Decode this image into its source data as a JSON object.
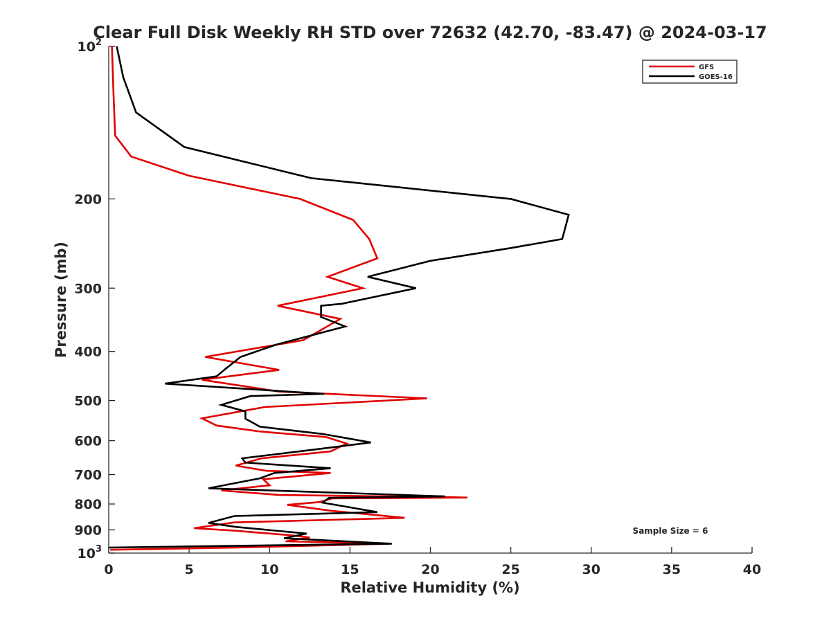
{
  "chart_data": {
    "type": "line",
    "title": "Clear Full Disk Weekly RH STD over 72632 (42.70, -83.47) @ 2024-03-17",
    "xlabel": "Relative Humidity (%)",
    "ylabel": "Pressure (mb)",
    "xlim": [
      0,
      40
    ],
    "ylim": [
      100,
      1000
    ],
    "y_scale": "log",
    "y_reversed": true,
    "x_ticks": [
      "0",
      "5",
      "10",
      "15",
      "20",
      "25",
      "30",
      "35",
      "40"
    ],
    "y_ticks": [
      {
        "value": 100,
        "base": "10",
        "exp": "2"
      },
      {
        "value": 200,
        "label": "200"
      },
      {
        "value": 300,
        "label": "300"
      },
      {
        "value": 400,
        "label": "400"
      },
      {
        "value": 500,
        "label": "500"
      },
      {
        "value": 600,
        "label": "600"
      },
      {
        "value": 700,
        "label": "700"
      },
      {
        "value": 800,
        "label": "800"
      },
      {
        "value": 900,
        "label": "900"
      },
      {
        "value": 1000,
        "base": "10",
        "exp": "3"
      }
    ],
    "legend_position": "top-right",
    "annotation": "Sample Size = 6",
    "series": [
      {
        "name": "GFS",
        "color": "#e00000",
        "points": [
          [
            0.2,
            100
          ],
          [
            0.3,
            125
          ],
          [
            0.4,
            150
          ],
          [
            1.4,
            165
          ],
          [
            5,
            180
          ],
          [
            11.9,
            200
          ],
          [
            15.2,
            220
          ],
          [
            16.2,
            240
          ],
          [
            16.7,
            262
          ],
          [
            13.6,
            285
          ],
          [
            15.8,
            300
          ],
          [
            10.5,
            325
          ],
          [
            14.4,
            345
          ],
          [
            12.1,
            380
          ],
          [
            6,
            410
          ],
          [
            10.6,
            435
          ],
          [
            5.8,
            455
          ],
          [
            10.6,
            480
          ],
          [
            19.8,
            495
          ],
          [
            9.7,
            515
          ],
          [
            5.8,
            542
          ],
          [
            6.7,
            560
          ],
          [
            9.3,
            575
          ],
          [
            13.5,
            590
          ],
          [
            14.8,
            608
          ],
          [
            13.8,
            630
          ],
          [
            9.5,
            650
          ],
          [
            7.9,
            672
          ],
          [
            9.8,
            688
          ],
          [
            13.8,
            695
          ],
          [
            9.6,
            715
          ],
          [
            10,
            735
          ],
          [
            7,
            752
          ],
          [
            10.6,
            768
          ],
          [
            20.8,
            775
          ],
          [
            22.3,
            777
          ],
          [
            13.9,
            780
          ],
          [
            13.1,
            793
          ],
          [
            11.1,
            803
          ],
          [
            13.8,
            825
          ],
          [
            18.4,
            852
          ],
          [
            7.8,
            870
          ],
          [
            5.3,
            893
          ],
          [
            7.8,
            903
          ],
          [
            11.3,
            922
          ],
          [
            12.5,
            932
          ],
          [
            11,
            948
          ],
          [
            17.5,
            958
          ],
          [
            8,
            975
          ],
          [
            0.1,
            985
          ]
        ]
      },
      {
        "name": "GOES-16",
        "color": "#000000",
        "points": [
          [
            0.5,
            100
          ],
          [
            0.9,
            115
          ],
          [
            1.7,
            135
          ],
          [
            4.7,
            158
          ],
          [
            12.6,
            182
          ],
          [
            25,
            200
          ],
          [
            28.6,
            215
          ],
          [
            28.2,
            240
          ],
          [
            25,
            250
          ],
          [
            20,
            265
          ],
          [
            16.1,
            285
          ],
          [
            19.1,
            300
          ],
          [
            14.5,
            322
          ],
          [
            13.2,
            325
          ],
          [
            13.2,
            342
          ],
          [
            14.7,
            357
          ],
          [
            10.4,
            388
          ],
          [
            8.2,
            410
          ],
          [
            7.3,
            432
          ],
          [
            6.7,
            448
          ],
          [
            3.5,
            463
          ],
          [
            13.4,
            485
          ],
          [
            8.8,
            490
          ],
          [
            7,
            510
          ],
          [
            8.5,
            525
          ],
          [
            8.5,
            543
          ],
          [
            9.4,
            563
          ],
          [
            13.3,
            582
          ],
          [
            16.3,
            605
          ],
          [
            13.1,
            623
          ],
          [
            8.3,
            650
          ],
          [
            8.5,
            663
          ],
          [
            13.8,
            680
          ],
          [
            10.3,
            695
          ],
          [
            9.4,
            712
          ],
          [
            6.2,
            745
          ],
          [
            20.9,
            773
          ],
          [
            13.7,
            778
          ],
          [
            13.3,
            795
          ],
          [
            16.7,
            830
          ],
          [
            7.8,
            845
          ],
          [
            6.2,
            872
          ],
          [
            7.9,
            888
          ],
          [
            12.3,
            915
          ],
          [
            10.9,
            935
          ],
          [
            17.6,
            958
          ],
          [
            0,
            975
          ]
        ]
      }
    ]
  }
}
